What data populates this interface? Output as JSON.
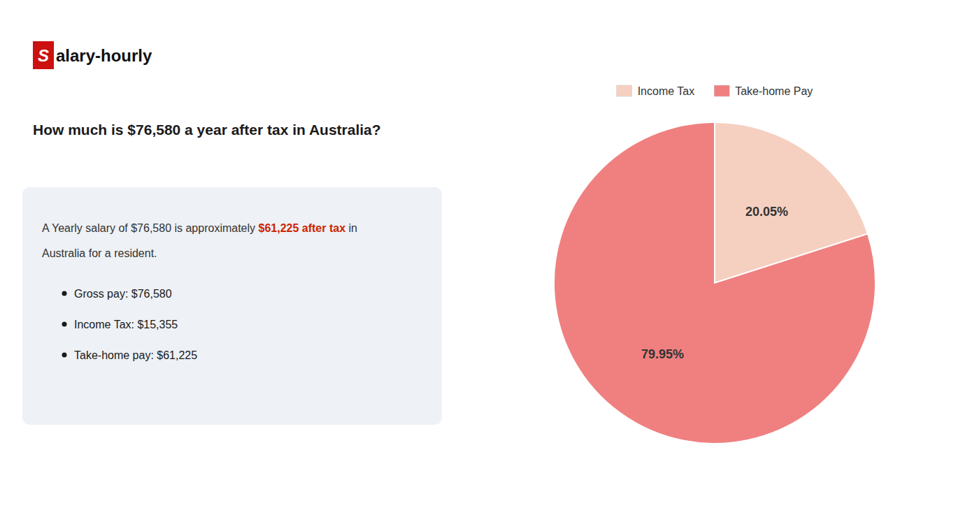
{
  "chart_data": {
    "type": "pie",
    "title": "How much is $76,580 a year after tax in Australia?",
    "categories": [
      "Income Tax",
      "Take-home Pay"
    ],
    "values": [
      20.05,
      79.95
    ],
    "value_labels": [
      "20.05%",
      "79.95%"
    ],
    "colors": [
      "#f5d0c0",
      "#f08080"
    ],
    "data_labels": true,
    "legend": "top",
    "annotations": [
      {
        "text": "S",
        "color": "#cc1111"
      },
      {
        "text": "alary-hourly"
      },
      {
        "text": "A Yearly salary of $76,580 is approximately "
      },
      {
        "text": "$61,225 after tax",
        "color": "#cc2200"
      },
      {
        "text": " in"
      },
      {
        "text": "Australia for a resident."
      },
      {
        "text": "Gross pay: $76,580"
      },
      {
        "text": "Income Tax: $15,355"
      },
      {
        "text": "Take-home pay: $61,225"
      }
    ]
  }
}
